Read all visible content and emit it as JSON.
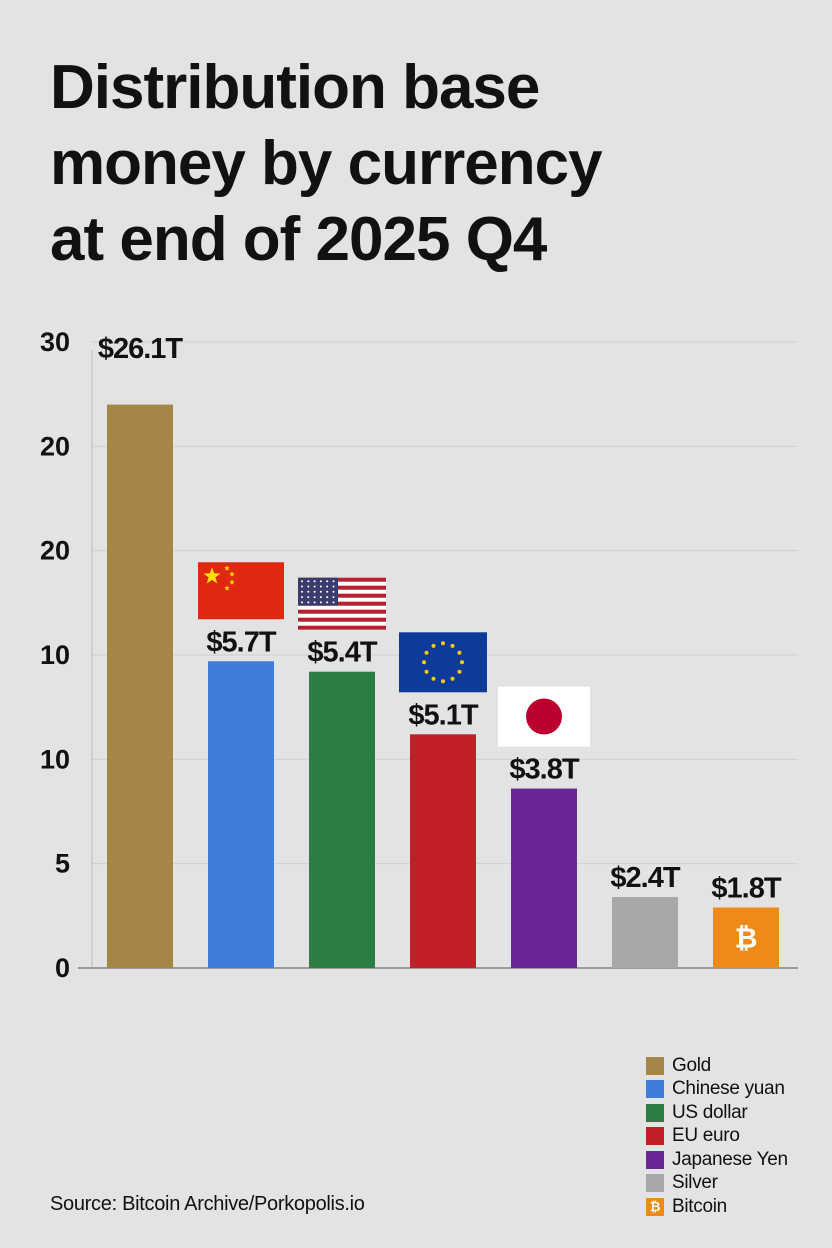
{
  "title": "Distribution base\nmoney by currency\nat end of 2025 Q4",
  "source": "Source: Bitcoin Archive/Porkopolis.io",
  "chart_data": {
    "type": "bar",
    "title": "Distribution base money by currency at end of 2025 Q4",
    "xlabel": "",
    "ylabel": "",
    "y_tick_labels": [
      "0",
      "5",
      "10",
      "10",
      "20",
      "20",
      "30"
    ],
    "ylim": [
      0,
      30
    ],
    "grid": true,
    "legend_position": "bottom-right",
    "categories": [
      "Gold",
      "Chinese yuan",
      "US dollar",
      "EU euro",
      "Japanese Yen",
      "Silver",
      "Bitcoin"
    ],
    "series": [
      {
        "values": [
          26.1,
          5.7,
          5.4,
          5.1,
          3.8,
          2.4,
          1.8
        ],
        "value_labels": [
          "$26.1T",
          "$5.7T",
          "$5.4T",
          "$5.1T",
          "$3.8T",
          "$2.4T",
          "$1.8T"
        ]
      }
    ],
    "visual_bar_levels": [
      27.0,
      14.7,
      14.2,
      11.2,
      8.6,
      3.4,
      2.9
    ],
    "colors": [
      "#a68646",
      "#3f7ddd",
      "#2c7d45",
      "#c22026",
      "#6a2596",
      "#a8a8a8",
      "#ee8a17"
    ],
    "flags": [
      "",
      "china-flag-icon",
      "usa-flag-icon",
      "eu-flag-icon",
      "japan-flag-icon",
      "",
      "bitcoin-icon"
    ],
    "bitcoin_symbol": "₿"
  },
  "legend": [
    {
      "label": "Gold",
      "color": "#a68646"
    },
    {
      "label": "Chinese yuan",
      "color": "#3f7ddd"
    },
    {
      "label": "US dollar",
      "color": "#2c7d45"
    },
    {
      "label": "EU euro",
      "color": "#c22026"
    },
    {
      "label": "Japanese Yen",
      "color": "#6a2596"
    },
    {
      "label": "Silver",
      "color": "#a8a8a8"
    },
    {
      "label": "Bitcoin",
      "color": "#ee8a17",
      "icon": "bitcoin-icon"
    }
  ]
}
